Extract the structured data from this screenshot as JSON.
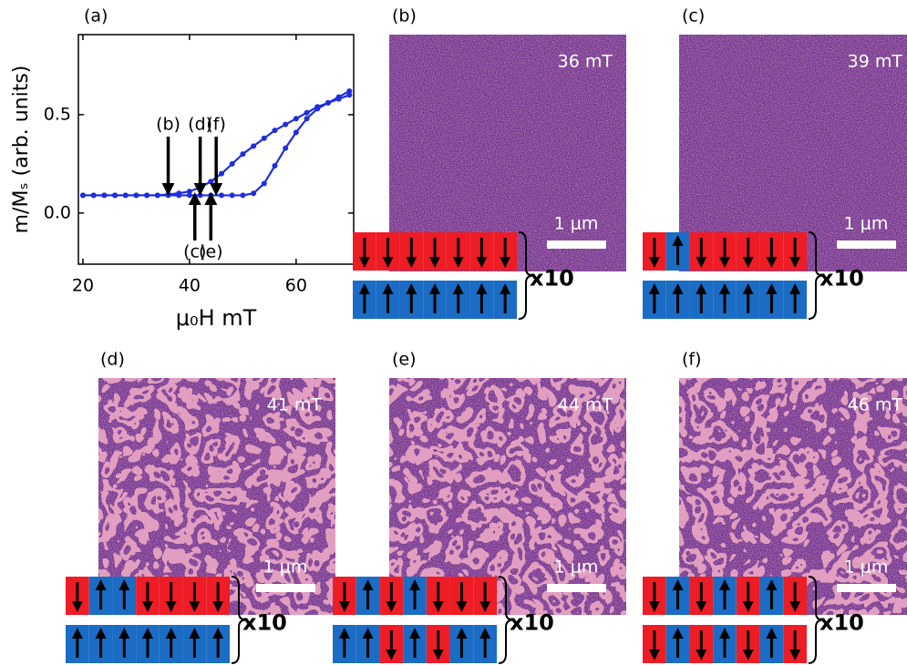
{
  "chart_data": {
    "type": "line",
    "label": "(a)",
    "xlabel": "μ₀H mT",
    "ylabel": "m/Mₛ (arb. units)",
    "x": [
      20,
      22,
      24,
      26,
      28,
      30,
      32,
      34,
      36,
      38,
      40,
      42,
      44,
      46,
      48,
      50,
      52,
      54,
      56,
      58,
      60,
      62,
      64,
      66,
      68,
      70
    ],
    "series": [
      {
        "color": "#1f2de0",
        "values": [
          0.09,
          0.09,
          0.09,
          0.09,
          0.09,
          0.09,
          0.09,
          0.09,
          0.09,
          0.09,
          0.09,
          0.09,
          0.09,
          0.09,
          0.09,
          0.09,
          0.1,
          0.15,
          0.24,
          0.33,
          0.41,
          0.48,
          0.53,
          0.56,
          0.59,
          0.62
        ]
      },
      {
        "color": "#1f2de0",
        "values": [
          0.09,
          0.09,
          0.09,
          0.09,
          0.09,
          0.09,
          0.09,
          0.09,
          0.095,
          0.1,
          0.11,
          0.13,
          0.16,
          0.2,
          0.25,
          0.3,
          0.34,
          0.38,
          0.42,
          0.45,
          0.48,
          0.51,
          0.54,
          0.56,
          0.58,
          0.6
        ]
      }
    ],
    "xlim": [
      19.15,
      70.8
    ],
    "ylim": [
      -0.26,
      0.907
    ],
    "xticks": [
      20,
      40,
      60
    ],
    "yticks": [
      {
        "value": 0,
        "label": "0.0"
      },
      0.5
    ],
    "annotations": [
      {
        "text": "(b)",
        "x": 36,
        "side": "above"
      },
      {
        "text": "(d)",
        "x": 42,
        "side": "above"
      },
      {
        "text": "(f)",
        "x": 45,
        "side": "above"
      },
      {
        "text": "(c)",
        "x": 41,
        "side": "below"
      },
      {
        "text": "(e)",
        "x": 44,
        "side": "below"
      }
    ]
  },
  "panels": [
    {
      "label": "(b)",
      "field": "36 mT",
      "scale": "1 μm",
      "multiplier": "x10"
    },
    {
      "label": "(c)",
      "field": "39 mT",
      "scale": "1 μm",
      "multiplier": "x10"
    },
    {
      "label": "(d)",
      "field": "41 mT",
      "scale": "1 μm",
      "multiplier": "x10"
    },
    {
      "label": "(e)",
      "field": "44 mT",
      "scale": "1 μm",
      "multiplier": "x10"
    },
    {
      "label": "(f)",
      "field": "46 mT",
      "scale": "1 μm",
      "multiplier": "x10"
    }
  ]
}
